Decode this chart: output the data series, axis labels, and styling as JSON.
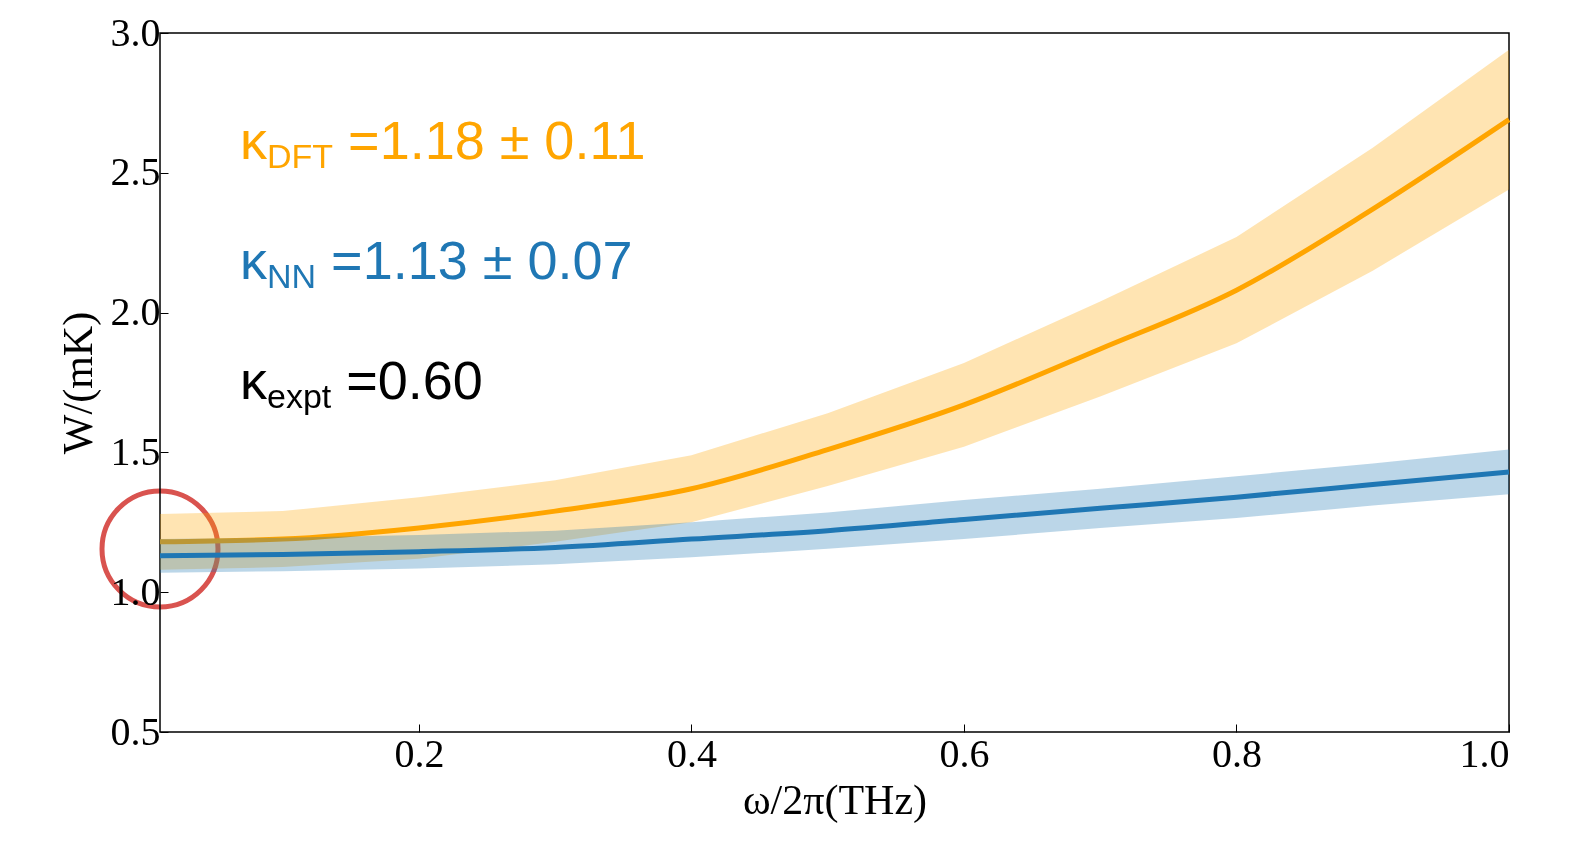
{
  "chart_data": {
    "type": "line",
    "xlabel": "ω/2π(THz)",
    "ylabel": "W/(mK)",
    "x": [
      0.01,
      0.1,
      0.2,
      0.3,
      0.4,
      0.5,
      0.6,
      0.7,
      0.8,
      0.9,
      1.0
    ],
    "xlim": [
      0.01,
      1.0
    ],
    "xticks": [
      0.2,
      0.4,
      0.6,
      0.8,
      {
        "value": 1,
        "label": "1.0"
      }
    ],
    "ylim": [
      0.5,
      3.0
    ],
    "yticks": [
      0.5,
      {
        "value": 1,
        "label": "1.0"
      },
      1.5,
      {
        "value": 2,
        "label": "2.0"
      },
      2.5,
      {
        "value": 3,
        "label": "3.0"
      }
    ],
    "series": [
      {
        "color": "#ffa500",
        "values": [
          1.18,
          1.19,
          1.23,
          1.29,
          1.37,
          1.51,
          1.67,
          1.87,
          2.08,
          2.37,
          2.69
        ],
        "lower": [
          1.08,
          1.09,
          1.12,
          1.18,
          1.25,
          1.38,
          1.52,
          1.7,
          1.89,
          2.15,
          2.44
        ],
        "upper": [
          1.28,
          1.29,
          1.34,
          1.4,
          1.49,
          1.64,
          1.82,
          2.04,
          2.27,
          2.59,
          2.94
        ]
      },
      {
        "color": "#1f77b4",
        "values": [
          1.13,
          1.135,
          1.145,
          1.16,
          1.19,
          1.22,
          1.26,
          1.3,
          1.34,
          1.385,
          1.43
        ],
        "lower": [
          1.07,
          1.075,
          1.085,
          1.1,
          1.125,
          1.155,
          1.19,
          1.23,
          1.265,
          1.31,
          1.35
        ],
        "upper": [
          1.19,
          1.195,
          1.205,
          1.22,
          1.25,
          1.285,
          1.33,
          1.37,
          1.415,
          1.46,
          1.51
        ]
      }
    ],
    "annotations": [
      "κ$_{DFT}$ =1.18 ± 0.11",
      "κ$_{NN}$ =1.13 ± 0.07",
      "κ$_{expt}$ =0.60"
    ]
  }
}
